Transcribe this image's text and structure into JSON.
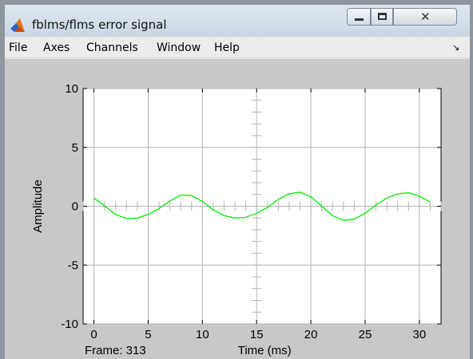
{
  "window": {
    "title": "fblms/flms error signal"
  },
  "menubar": {
    "items": [
      "File",
      "Axes",
      "Channels",
      "Window",
      "Help"
    ]
  },
  "figure": {
    "frame_label": "Frame: 313"
  },
  "colors": {
    "trace": "#00ee00",
    "plot_background": "#ffffff",
    "figure_background": "#c8c8c8",
    "grid": "#b4b4b4"
  },
  "icons": {
    "app": "matlab-logo-icon",
    "minimize": "minimize-icon",
    "maximize": "maximize-icon",
    "close": "close-icon",
    "dock": "dock-arrow-icon"
  },
  "chart_data": {
    "type": "line",
    "xlabel": "Time (ms)",
    "ylabel": "Amplitude",
    "xlim": [
      -1,
      32
    ],
    "ylim": [
      -10,
      10
    ],
    "xticks": [
      0,
      5,
      10,
      15,
      20,
      25,
      30
    ],
    "yticks": [
      -10,
      -5,
      0,
      5,
      10
    ],
    "grid": true,
    "series": [
      {
        "x": [
          0,
          1,
          2,
          3,
          4,
          5,
          6,
          7,
          8,
          9,
          10,
          11,
          12,
          13,
          14,
          15,
          16,
          17,
          18,
          19,
          20,
          21,
          22,
          23,
          24,
          25,
          26,
          27,
          28,
          29,
          30,
          31
        ],
        "values": [
          0.7,
          0.0,
          -0.7,
          -1.05,
          -1.0,
          -0.7,
          -0.2,
          0.45,
          0.95,
          0.9,
          0.4,
          -0.3,
          -0.8,
          -1.0,
          -0.95,
          -0.6,
          -0.1,
          0.6,
          1.05,
          1.2,
          0.8,
          0.0,
          -0.8,
          -1.2,
          -1.1,
          -0.6,
          0.1,
          0.7,
          1.05,
          1.15,
          0.85,
          0.35
        ]
      }
    ]
  }
}
